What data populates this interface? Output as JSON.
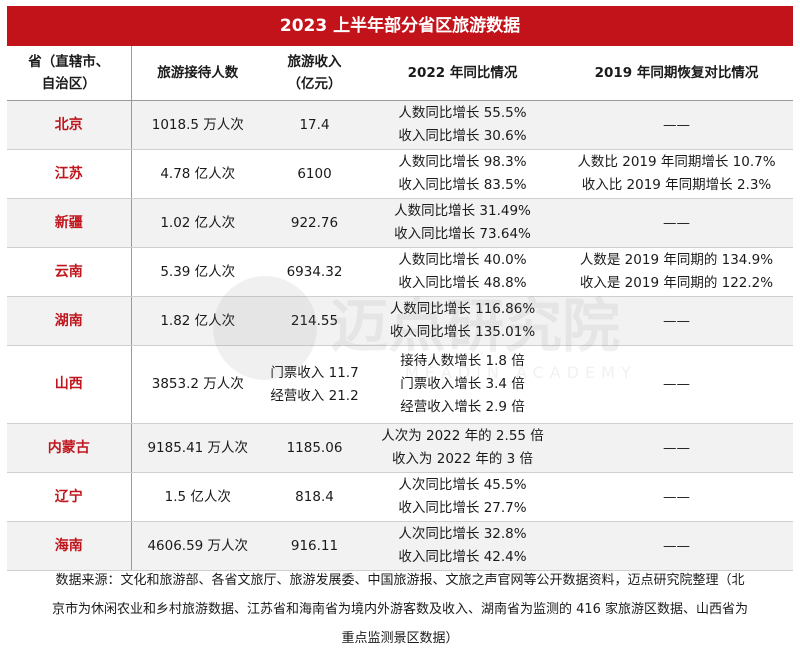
{
  "title": "2023 上半年部分省区旅游数据",
  "headers": {
    "province": [
      "省（直辖市、",
      "自治区）"
    ],
    "visitors": "旅游接待人数",
    "revenue": [
      "旅游收入",
      "（亿元）"
    ],
    "yoy2022": "2022 年同比情况",
    "vs2019": "2019 年同期恢复对比情况"
  },
  "rows": [
    {
      "province": "北京",
      "visitors": "1018.5 万人次",
      "revenue": [
        "17.4"
      ],
      "yoy": [
        "人数同比增长 55.5%",
        "收入同比增长 30.6%"
      ],
      "vs2019": [
        "——"
      ]
    },
    {
      "province": "江苏",
      "visitors": "4.78 亿人次",
      "revenue": [
        "6100"
      ],
      "yoy": [
        "人数同比增长 98.3%",
        "收入同比增长 83.5%"
      ],
      "vs2019": [
        "人数比 2019 年同期增长 10.7%",
        "收入比 2019 年同期增长 2.3%"
      ]
    },
    {
      "province": "新疆",
      "visitors": "1.02 亿人次",
      "revenue": [
        "922.76"
      ],
      "yoy": [
        "人数同比增长 31.49%",
        "收入同比增长 73.64%"
      ],
      "vs2019": [
        "——"
      ]
    },
    {
      "province": "云南",
      "visitors": "5.39 亿人次",
      "revenue": [
        "6934.32"
      ],
      "yoy": [
        "人数同比增长 40.0%",
        "收入同比增长 48.8%"
      ],
      "vs2019": [
        "人数是 2019 年同期的 134.9%",
        "收入是 2019 年同期的 122.2%"
      ]
    },
    {
      "province": "湖南",
      "visitors": "1.82 亿人次",
      "revenue": [
        "214.55"
      ],
      "yoy": [
        "人数同比增长 116.86%",
        "收入同比增长 135.01%"
      ],
      "vs2019": [
        "——"
      ]
    },
    {
      "province": "山西",
      "visitors": "3853.2 万人次",
      "revenue": [
        "门票收入 11.7",
        "经营收入 21.2"
      ],
      "yoy": [
        "接待人数增长 1.8 倍",
        "门票收入增长 3.4 倍",
        "经营收入增长 2.9 倍"
      ],
      "vs2019": [
        "——"
      ]
    },
    {
      "province": "内蒙古",
      "visitors": "9185.41 万人次",
      "revenue": [
        "1185.06"
      ],
      "yoy": [
        "人次为 2022 年的 2.55 倍",
        "收入为 2022 年的 3 倍"
      ],
      "vs2019": [
        "——"
      ]
    },
    {
      "province": "辽宁",
      "visitors": "1.5 亿人次",
      "revenue": [
        "818.4"
      ],
      "yoy": [
        "人次同比增长 45.5%",
        "收入同比增长 27.7%"
      ],
      "vs2019": [
        "——"
      ]
    },
    {
      "province": "海南",
      "visitors": "4606.59 万人次",
      "revenue": [
        "916.11"
      ],
      "yoy": [
        "人次同比增长 32.8%",
        "收入同比增长 42.4%"
      ],
      "vs2019": [
        "——"
      ]
    }
  ],
  "note": [
    "数据来源：文化和旅游部、各省文旅厅、旅游发展委、中国旅游报、文旅之声官网等公开数据资料，迈点研究院整理（北",
    "京市为休闲农业和乡村旅游数据、江苏省和海南省为境内外游客数及收入、湖南省为监测的 416 家旅游区数据、山西省为",
    "重点监测景区数据）"
  ],
  "watermark": {
    "text": "迈点研究院",
    "sub": "MEADIN ACADEMY"
  },
  "colors": {
    "title_bg": "#c2121a",
    "province_text": "#c0161d",
    "stripe": "#f2f2f2"
  }
}
